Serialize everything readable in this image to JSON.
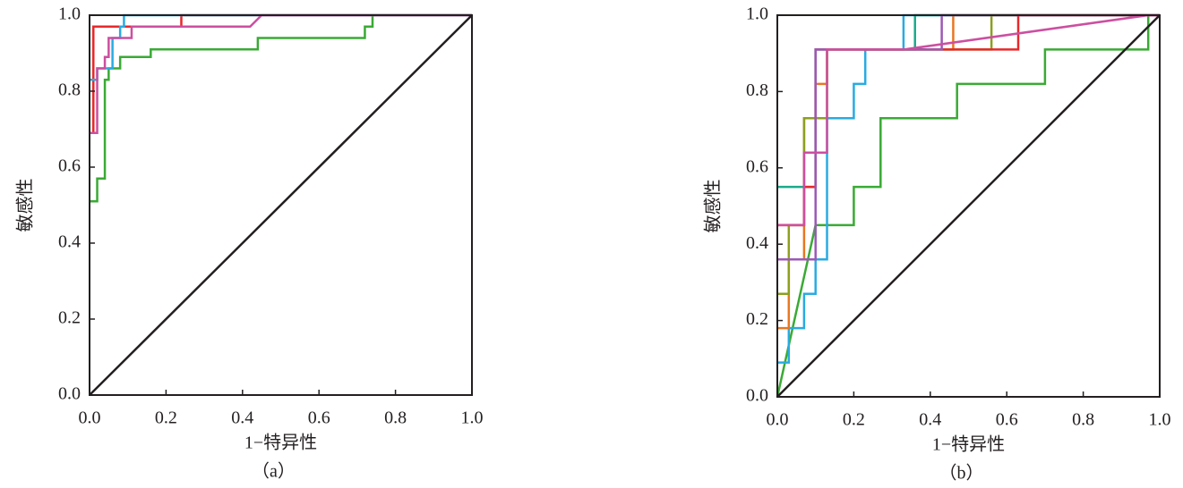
{
  "chart_data": [
    {
      "type": "line",
      "caption": "（a）",
      "xlabel": "1−特异性",
      "ylabel": "敏感性",
      "xlim": [
        0,
        1
      ],
      "ylim": [
        0,
        1
      ],
      "xticks": [
        {
          "value": 0,
          "label": "0.0"
        },
        0.2,
        0.4,
        0.6,
        0.8,
        {
          "value": 1,
          "label": "1.0"
        }
      ],
      "yticks": [
        {
          "value": 0,
          "label": "0.0"
        },
        0.2,
        0.4,
        0.6,
        0.8,
        {
          "value": 1,
          "label": "1.0"
        }
      ],
      "series": [
        {
          "color": "#3aaa35",
          "x": [
            0,
            0.02,
            0.02,
            0.04,
            0.04,
            0.05,
            0.05,
            0.08,
            0.08,
            0.16,
            0.16,
            0.44,
            0.44,
            0.72,
            0.72,
            0.74,
            0.74,
            1
          ],
          "values": [
            0.51,
            0.51,
            0.57,
            0.57,
            0.83,
            0.83,
            0.86,
            0.86,
            0.89,
            0.89,
            0.91,
            0.91,
            0.94,
            0.94,
            0.97,
            0.97,
            1,
            1
          ]
        },
        {
          "color": "#e8282b",
          "x": [
            0,
            0.01,
            0.01,
            0.24,
            0.24,
            1
          ],
          "values": [
            0.69,
            0.69,
            0.97,
            0.97,
            1,
            1
          ]
        },
        {
          "color": "#29abe2",
          "x": [
            0,
            0.02,
            0.02,
            0.06,
            0.06,
            0.08,
            0.08,
            0.09,
            0.09,
            1
          ],
          "values": [
            0.83,
            0.83,
            0.86,
            0.86,
            0.94,
            0.94,
            0.97,
            0.97,
            1,
            1
          ]
        },
        {
          "color": "#cc4fa0",
          "x": [
            0,
            0.02,
            0.02,
            0.04,
            0.04,
            0.05,
            0.05,
            0.11,
            0.11,
            0.42,
            0.45,
            1
          ],
          "values": [
            0.69,
            0.69,
            0.86,
            0.86,
            0.89,
            0.89,
            0.94,
            0.94,
            0.97,
            0.97,
            1,
            1
          ]
        },
        {
          "color": "#231f20",
          "x": [
            0,
            1
          ],
          "values": [
            0,
            1
          ]
        }
      ]
    },
    {
      "type": "line",
      "caption": "（b）",
      "xlabel": "1−特异性",
      "ylabel": "敏感性",
      "xlim": [
        0,
        1
      ],
      "ylim": [
        0,
        1
      ],
      "xticks": [
        {
          "value": 0,
          "label": "0.0"
        },
        0.2,
        0.4,
        0.6,
        0.8,
        {
          "value": 1,
          "label": "1.0"
        }
      ],
      "yticks": [
        {
          "value": 0,
          "label": "0.0"
        },
        0.2,
        0.4,
        0.6,
        0.8,
        {
          "value": 1,
          "label": "1.0"
        }
      ],
      "series": [
        {
          "color": "#3aaa35",
          "x": [
            0,
            0.1,
            0.2,
            0.2,
            0.27,
            0.27,
            0.47,
            0.47,
            0.7,
            0.7,
            0.97,
            0.97,
            1
          ],
          "values": [
            0,
            0.45,
            0.45,
            0.55,
            0.55,
            0.73,
            0.73,
            0.82,
            0.82,
            0.91,
            0.91,
            1,
            1
          ]
        },
        {
          "color": "#29abe2",
          "x": [
            0,
            0.03,
            0.03,
            0.07,
            0.07,
            0.1,
            0.1,
            0.13,
            0.13,
            0.2,
            0.2,
            0.23,
            0.23,
            0.33,
            0.33,
            1
          ],
          "values": [
            0.09,
            0.09,
            0.18,
            0.18,
            0.27,
            0.27,
            0.36,
            0.36,
            0.73,
            0.73,
            0.82,
            0.82,
            0.91,
            0.91,
            1,
            1
          ]
        },
        {
          "color": "#e87722",
          "x": [
            0,
            0.03,
            0.03,
            0.07,
            0.07,
            0.1,
            0.1,
            0.13,
            0.13,
            0.46,
            0.46,
            1
          ],
          "values": [
            0.18,
            0.18,
            0.36,
            0.36,
            0.73,
            0.73,
            0.82,
            0.82,
            0.91,
            0.91,
            1,
            1
          ]
        },
        {
          "color": "#1aaa8c",
          "x": [
            0,
            0.1,
            0.1,
            0.36,
            0.36,
            1
          ],
          "values": [
            0.55,
            0.55,
            0.91,
            0.91,
            1,
            1
          ]
        },
        {
          "color": "#8ca01f",
          "x": [
            0,
            0.03,
            0.03,
            0.07,
            0.07,
            0.13,
            0.13,
            0.56,
            0.56,
            1
          ],
          "values": [
            0.27,
            0.27,
            0.45,
            0.45,
            0.73,
            0.73,
            0.91,
            0.91,
            1,
            1
          ]
        },
        {
          "color": "#e8282b",
          "x": [
            0,
            0.07,
            0.07,
            0.1,
            0.1,
            0.63,
            0.63,
            1
          ],
          "values": [
            0.45,
            0.45,
            0.55,
            0.55,
            0.91,
            0.91,
            1,
            1
          ]
        },
        {
          "color": "#9b59b6",
          "x": [
            0,
            0.1,
            0.1,
            0.43,
            0.43,
            1
          ],
          "values": [
            0.36,
            0.36,
            0.91,
            0.91,
            1,
            1
          ]
        },
        {
          "color": "#cc4fa0",
          "x": [
            0,
            0.07,
            0.07,
            0.13,
            0.13,
            0.33,
            0.97,
            1
          ],
          "values": [
            0.45,
            0.45,
            0.64,
            0.64,
            0.91,
            0.91,
            1,
            1
          ]
        },
        {
          "color": "#231f20",
          "x": [
            0,
            1
          ],
          "values": [
            0,
            1
          ]
        }
      ]
    }
  ]
}
